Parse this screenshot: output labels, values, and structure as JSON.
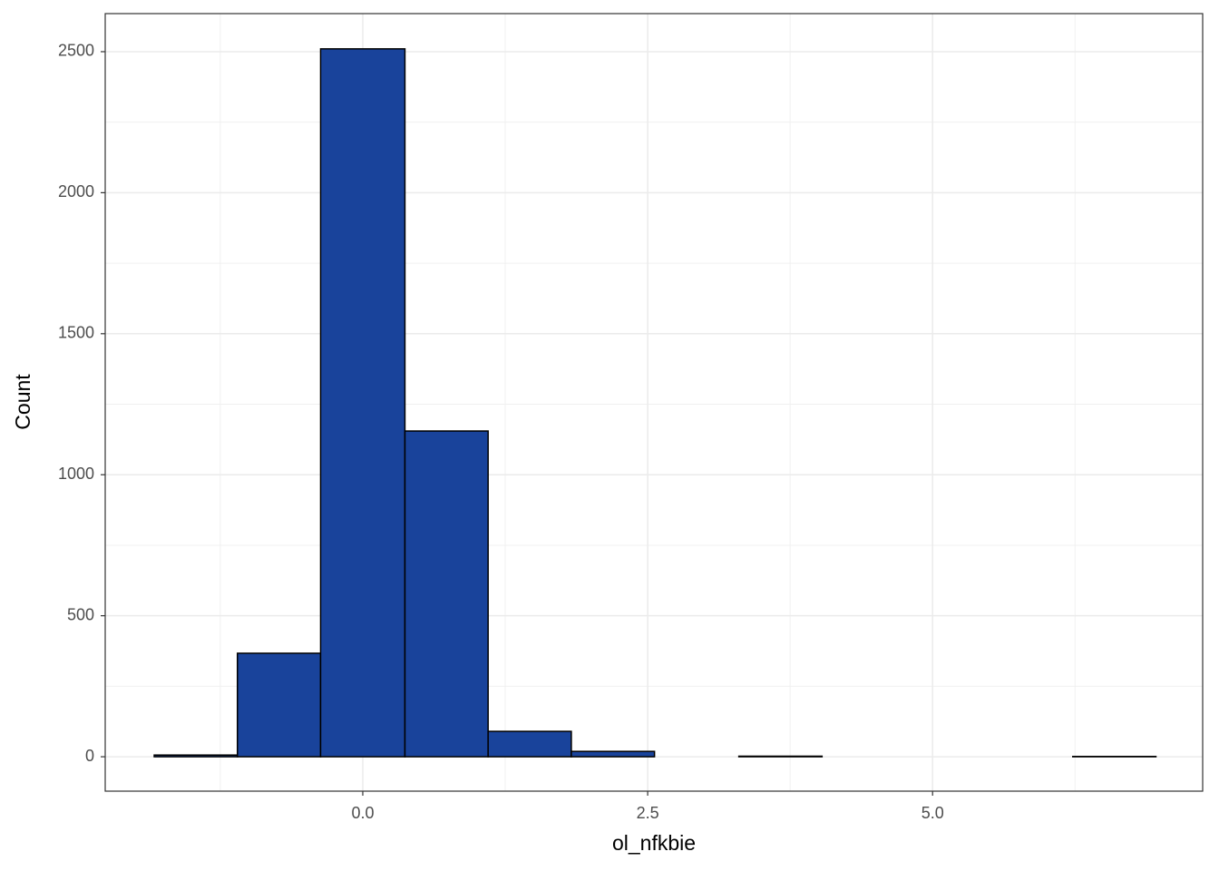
{
  "chart_data": {
    "type": "histogram",
    "x_label": "ol_nfkbie",
    "y_label": "Count",
    "bins": [
      -1.83,
      -1.1,
      -0.37,
      0.37,
      1.1,
      1.83,
      2.56,
      3.3,
      4.03,
      4.76,
      5.49,
      6.23,
      6.96
    ],
    "values": [
      6,
      367,
      2510,
      1155,
      90,
      19,
      0,
      2,
      0,
      0,
      0,
      1
    ],
    "color": "#19439b",
    "xlim": [
      -2.26,
      7.37
    ],
    "ylim": [
      -122,
      2635
    ],
    "xticks": [
      {
        "value": 0,
        "label": "0.0"
      },
      {
        "value": 2.5,
        "label": "2.5"
      },
      {
        "value": 5,
        "label": "5.0"
      }
    ],
    "yticks": [
      0,
      500,
      1000,
      1500,
      2000,
      2500
    ],
    "grid": true
  }
}
